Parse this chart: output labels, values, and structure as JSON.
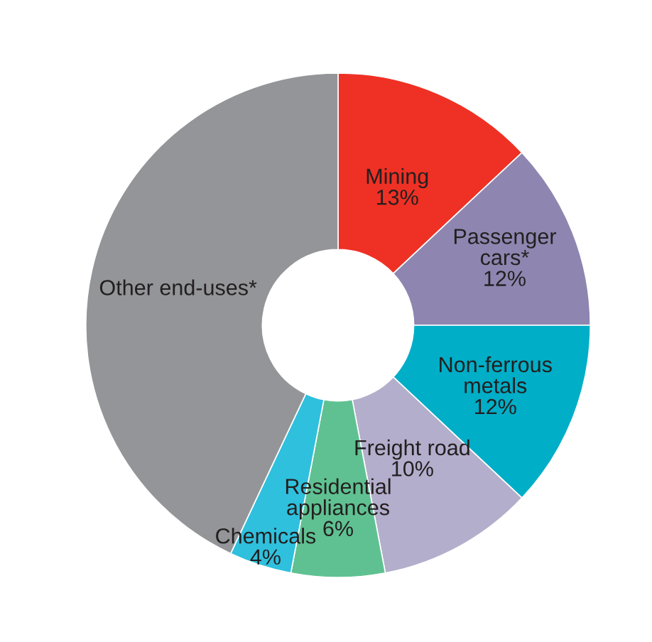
{
  "chart_data": {
    "type": "donut",
    "categories": [
      "Mining",
      "Passenger\ncars*",
      "Non-ferrous\nmetals",
      "Freight road",
      "Residential\nappliances",
      "Chemicals",
      "Other end-uses*"
    ],
    "values": [
      13,
      12,
      12,
      10,
      6,
      4,
      43
    ],
    "colors": [
      "#ee3124",
      "#8e86b0",
      "#00aec7",
      "#b3aecb",
      "#5fc191",
      "#2fc0dd",
      "#939598"
    ],
    "value_labels": [
      "13%",
      "12%",
      "12%",
      "10%",
      "6%",
      "4%",
      null
    ]
  }
}
